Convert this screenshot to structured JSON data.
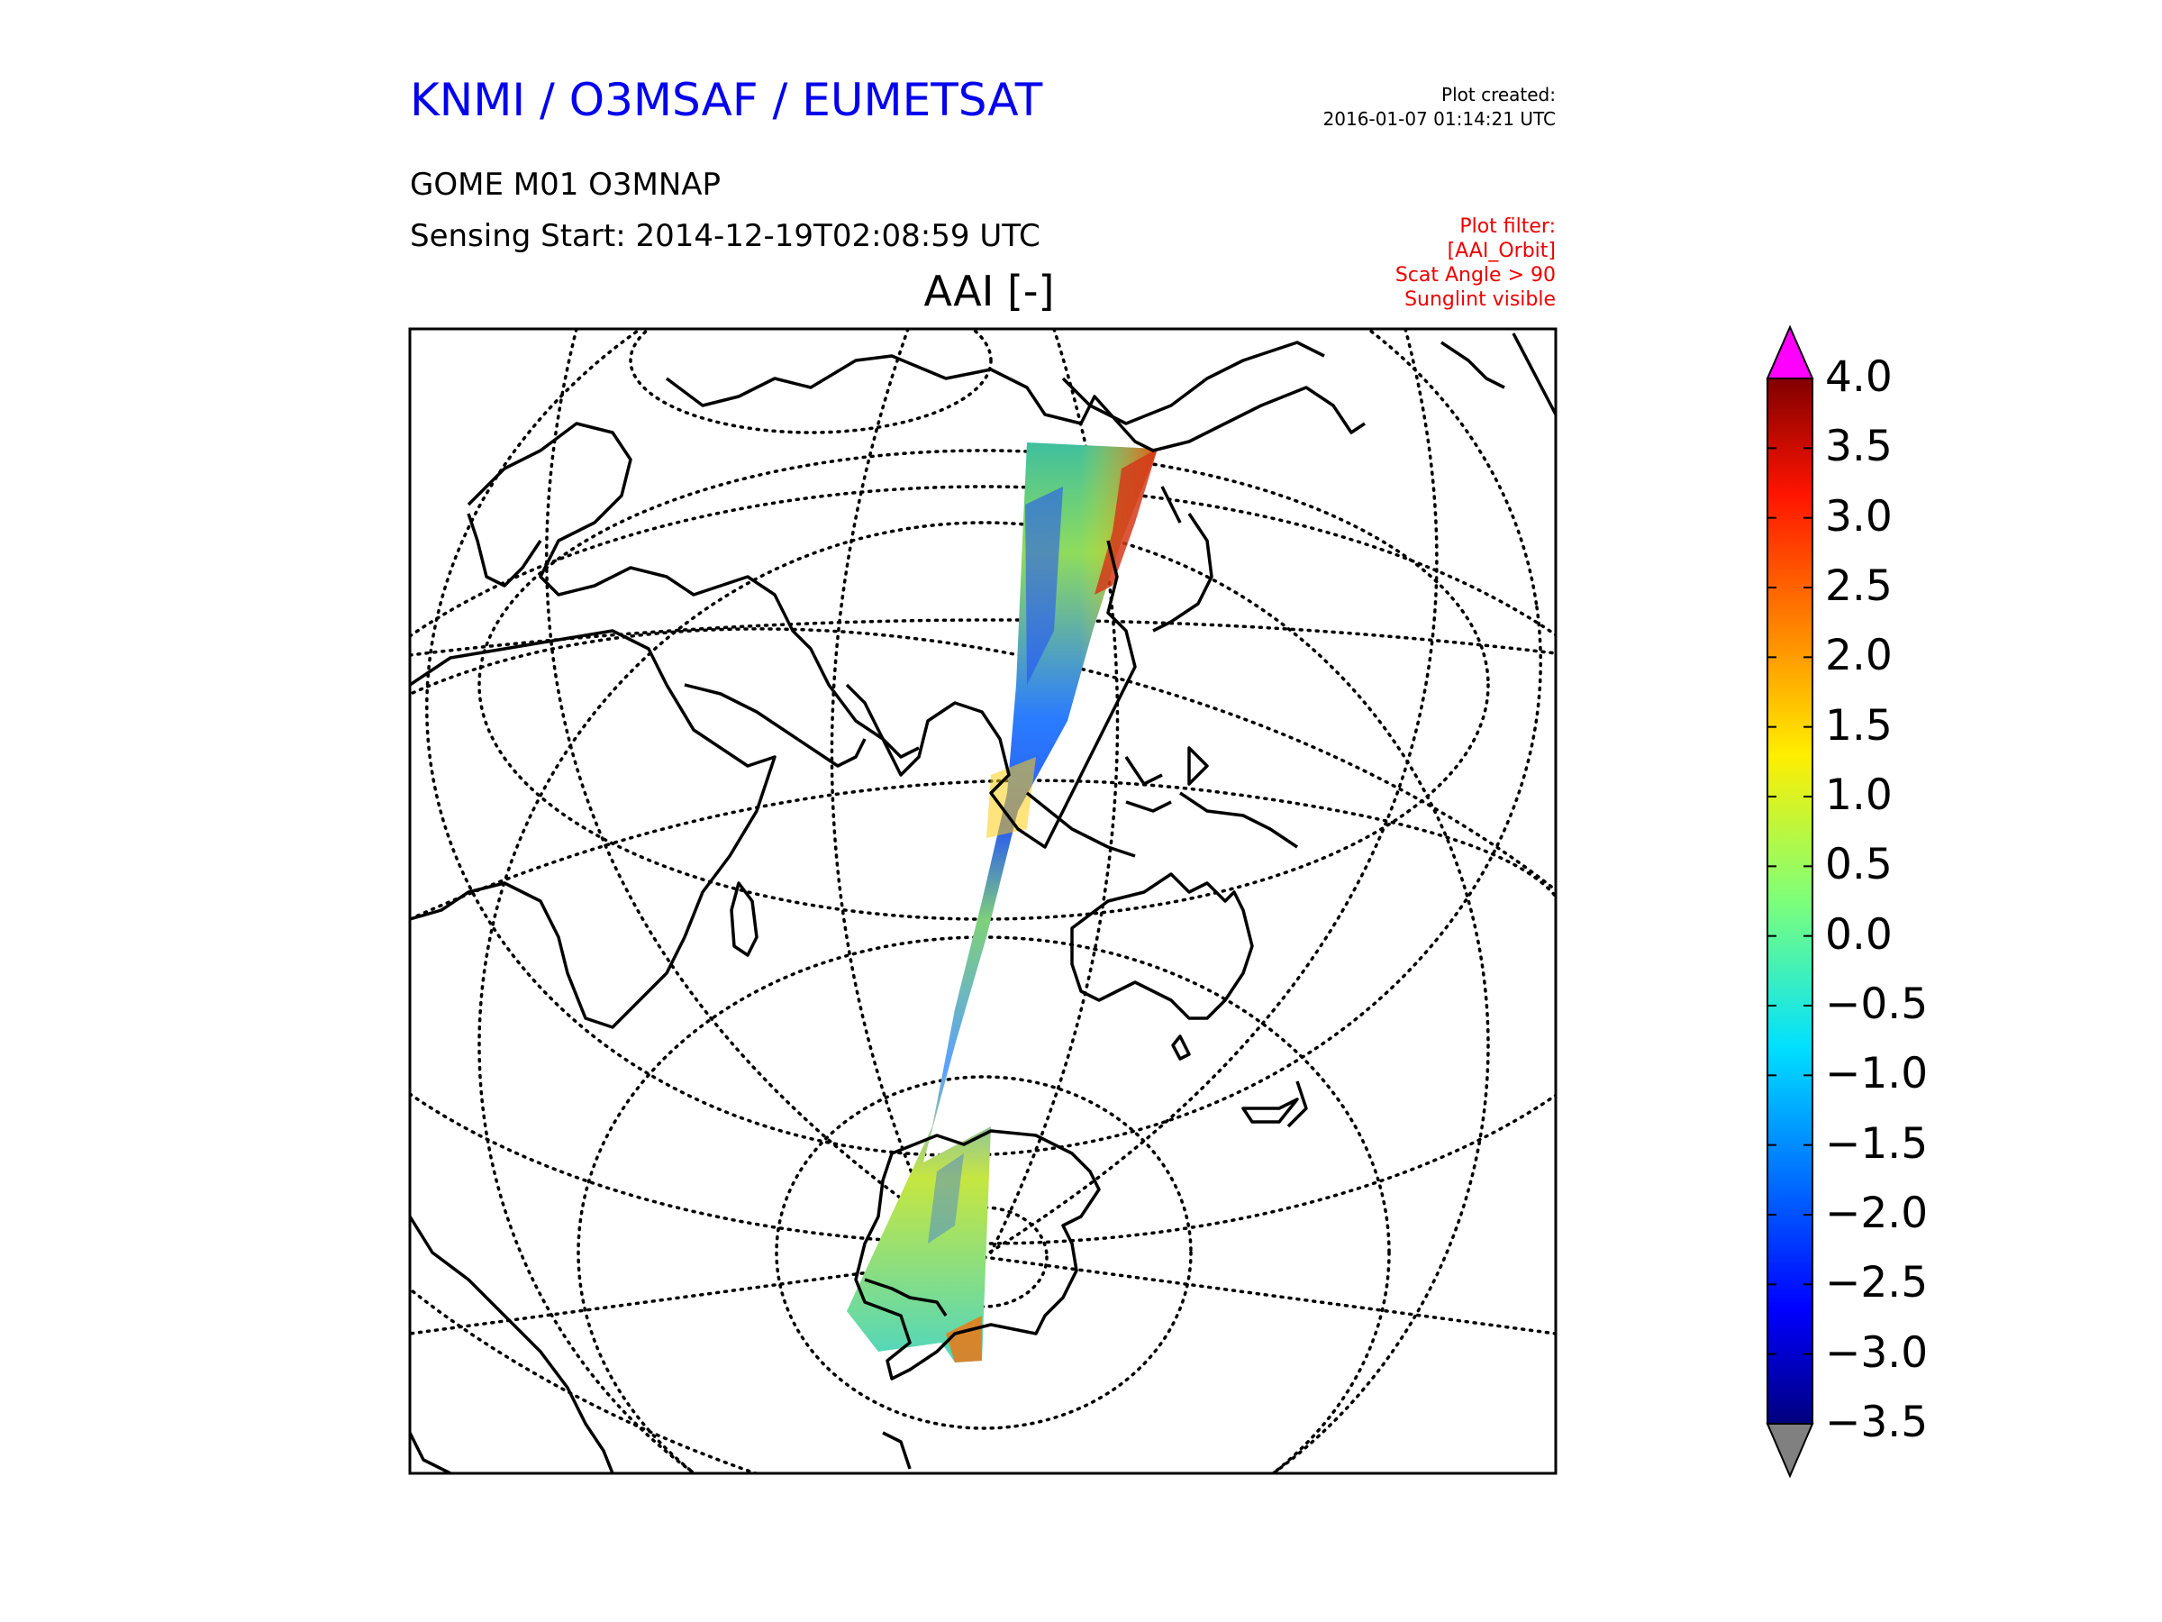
{
  "header": {
    "org_title": "KNMI / O3MSAF / EUMETSAT",
    "plot_created_label": "Plot created:",
    "plot_created_time": "2016-01-07 01:14:21 UTC",
    "product": "GOME M01 O3MNAP",
    "sensing_start": "Sensing Start: 2014-12-19T02:08:59 UTC"
  },
  "filter": {
    "title": "Plot filter:",
    "lines": [
      "[AAI_Orbit]",
      "Scat Angle > 90",
      "Sunglint visible"
    ]
  },
  "map": {
    "title": "AAI [-]",
    "projection": "orthographic",
    "coastline_color": "#000000",
    "graticule_style": "dotted"
  },
  "colorbar": {
    "min": -3.5,
    "max": 4.0,
    "ticks": [
      "4.0",
      "3.5",
      "3.0",
      "2.5",
      "2.0",
      "1.5",
      "1.0",
      "0.5",
      "0.0",
      "−0.5",
      "−1.0",
      "−1.5",
      "−2.0",
      "−2.5",
      "−3.0",
      "−3.5"
    ],
    "over_color": "#ff00ff",
    "under_color": "#808080",
    "colormap": "jet"
  }
}
